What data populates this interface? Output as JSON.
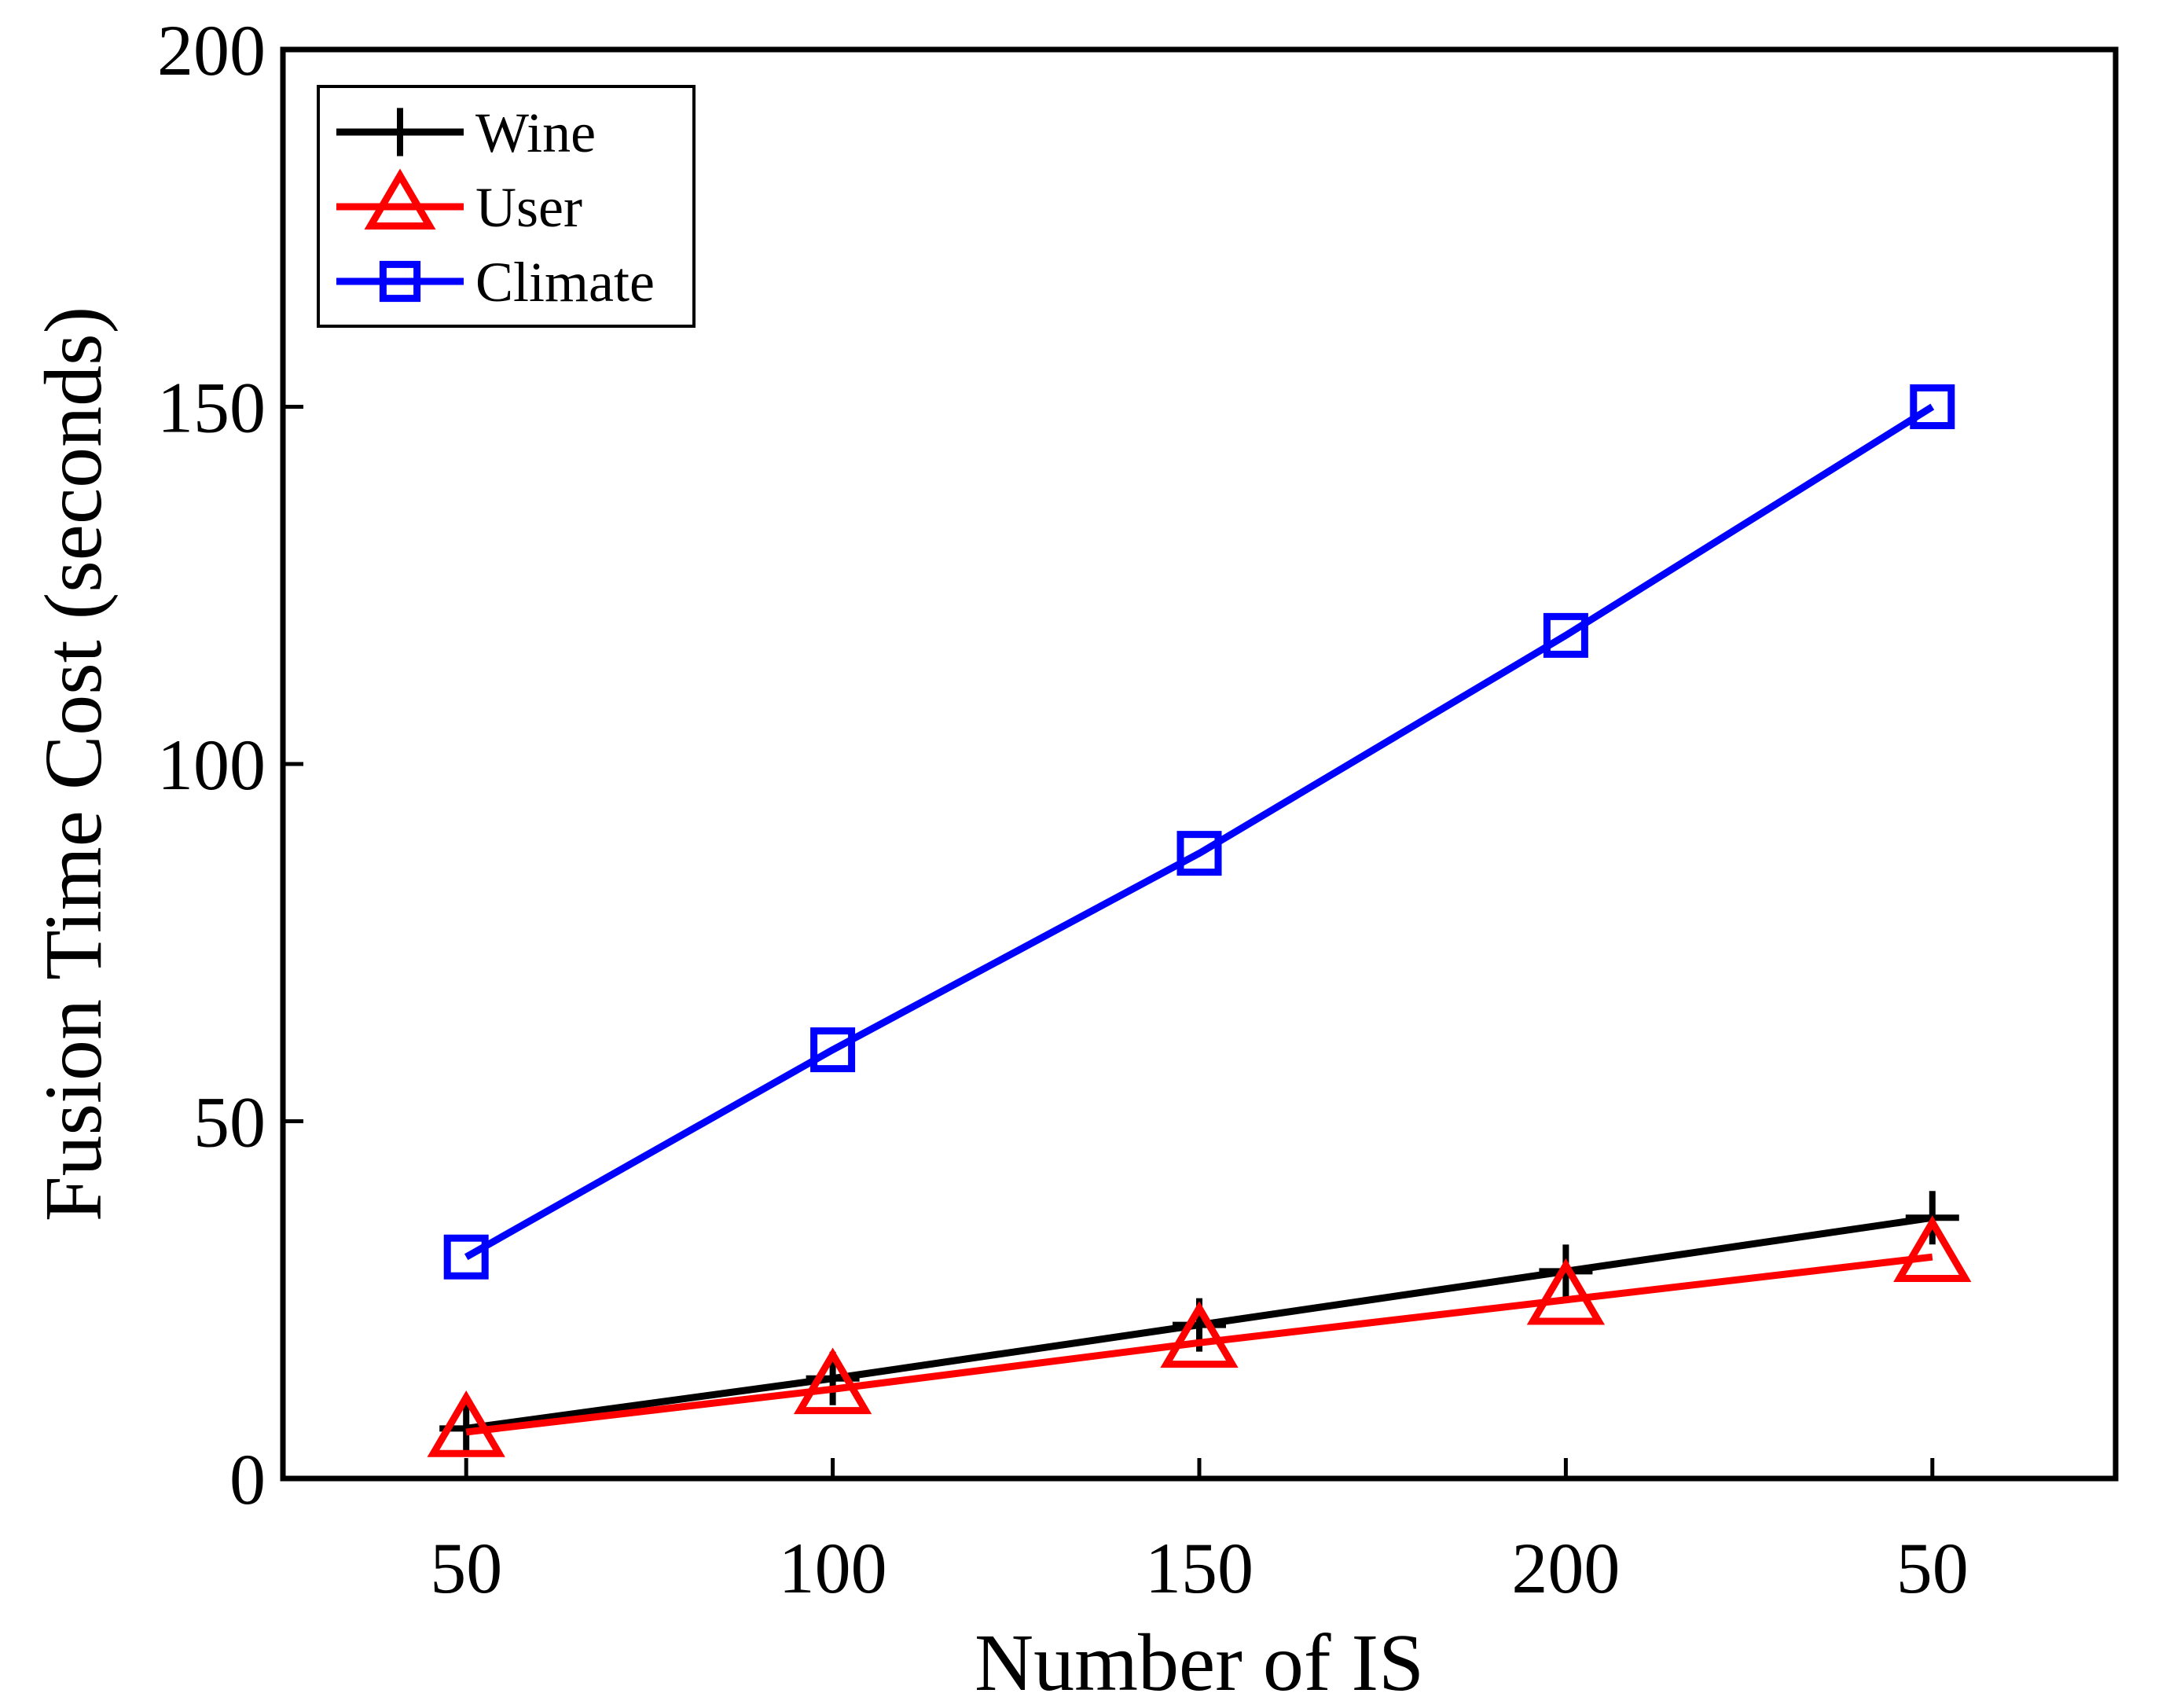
{
  "chart_data": {
    "type": "line",
    "title": "",
    "xlabel": "Number of IS",
    "ylabel": "Fusion Time Cost (seconds)",
    "categories": [
      "50",
      "100",
      "150",
      "200",
      "50"
    ],
    "xlim": [
      0.5,
      5.5
    ],
    "ylim": [
      0,
      200
    ],
    "yticks": [
      "0",
      "50",
      "100",
      "150",
      "200"
    ],
    "grid": false,
    "legend_position": "top-left",
    "series": [
      {
        "name": "Wine",
        "color": "#000000",
        "marker": "plus",
        "values": [
          7,
          14,
          21.5,
          29,
          36.5
        ]
      },
      {
        "name": "User",
        "color": "#ff0000",
        "marker": "triangle",
        "values": [
          6.5,
          12.5,
          19,
          25,
          31
        ]
      },
      {
        "name": "Climate",
        "color": "#0000ff",
        "marker": "square",
        "values": [
          31,
          60,
          87.5,
          118,
          150
        ]
      }
    ]
  }
}
